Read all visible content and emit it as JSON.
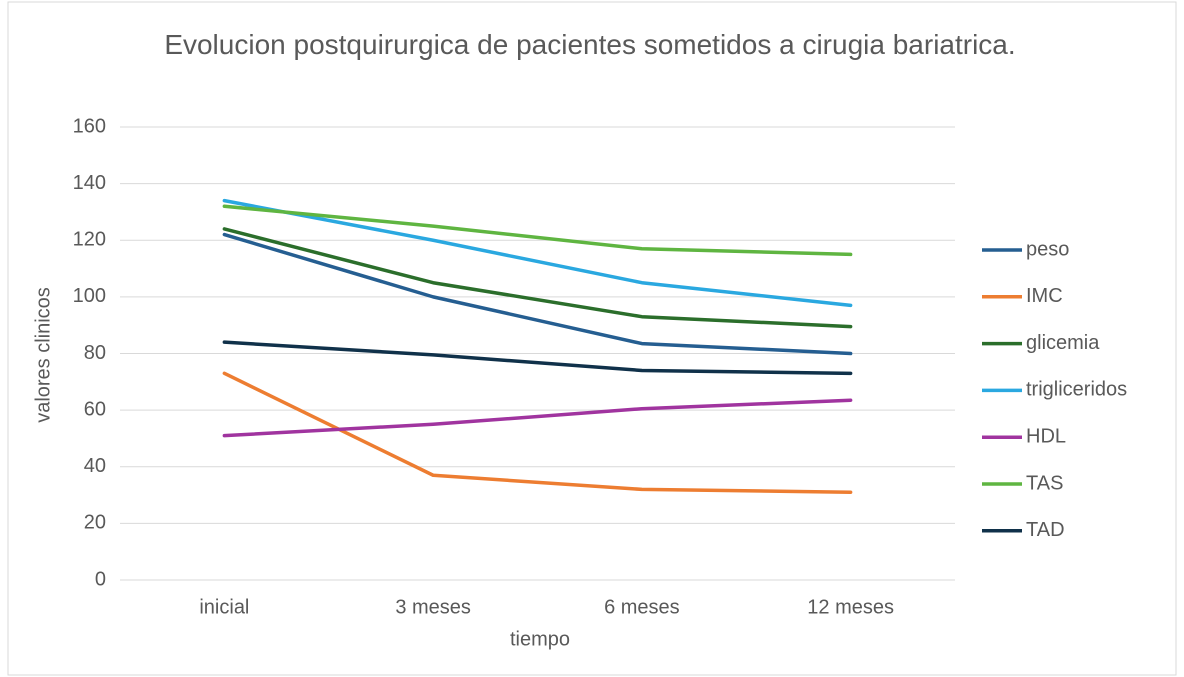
{
  "chart_data": {
    "type": "line",
    "title": "Evolucion postquirurgica de pacientes sometidos a cirugia bariatrica.",
    "xlabel": "tiempo",
    "ylabel": "valores clinicos",
    "categories": [
      "inicial",
      "3 meses",
      "6 meses",
      "12 meses"
    ],
    "series": [
      {
        "name": "peso",
        "color": "#255e91",
        "values": [
          122,
          100,
          83.5,
          80
        ]
      },
      {
        "name": "IMC",
        "color": "#ed7d31",
        "values": [
          73,
          37,
          32,
          31
        ]
      },
      {
        "name": "glicemia",
        "color": "#2b6e2b",
        "values": [
          124,
          105,
          93,
          89.5
        ]
      },
      {
        "name": "trigliceridos",
        "color": "#2aa8e0",
        "values": [
          134,
          120,
          105,
          97
        ]
      },
      {
        "name": "HDL",
        "color": "#a0349f",
        "values": [
          51,
          55,
          60.5,
          63.5
        ]
      },
      {
        "name": "TAS",
        "color": "#5fb541",
        "values": [
          132,
          125,
          117,
          115
        ]
      },
      {
        "name": "TAD",
        "color": "#10314a",
        "values": [
          84,
          79.5,
          74,
          73
        ]
      }
    ],
    "ylim": [
      0,
      160
    ],
    "yticks": [
      0,
      20,
      40,
      60,
      80,
      100,
      120,
      140,
      160
    ],
    "grid": true,
    "legend": "right"
  }
}
